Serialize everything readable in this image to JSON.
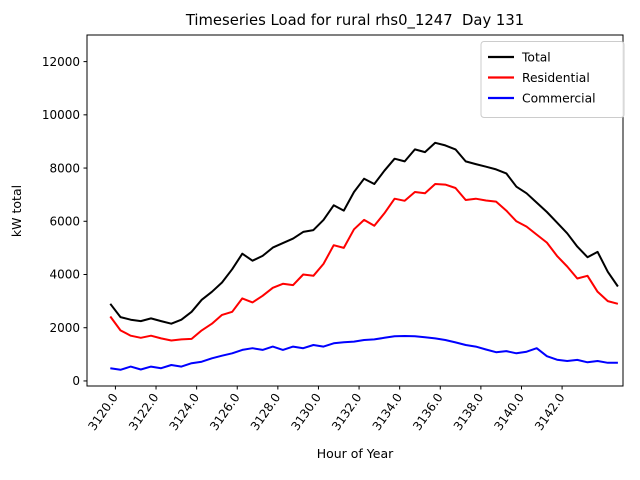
{
  "figure": {
    "title": "Timeseries Load for rural rhs0_1247  Day 131",
    "xlabel": "Hour of Year",
    "ylabel": "kW total"
  },
  "legend": {
    "entries": [
      "Total",
      "Residential",
      "Commercial"
    ],
    "position": "upper right"
  },
  "colors": {
    "total": "#000000",
    "residential": "#ff0000",
    "commercial": "#0000ff",
    "legend_border": "#cccccc",
    "background": "#ffffff"
  },
  "chart_data": {
    "type": "line",
    "title": "Timeseries Load for rural rhs0_1247  Day 131",
    "xlabel": "Hour of Year",
    "ylabel": "kW total",
    "grid": false,
    "legend_position": "upper right",
    "xlim": [
      3118.6,
      3145.0
    ],
    "ylim": [
      -190,
      13000
    ],
    "y_ticks": [
      0,
      2000,
      4000,
      6000,
      8000,
      10000,
      12000
    ],
    "x_ticks": [
      3120,
      3122,
      3124,
      3126,
      3128,
      3130,
      3132,
      3134,
      3136,
      3138,
      3140,
      3142
    ],
    "x_tick_labels": [
      "3120.0",
      "3122.0",
      "3124.0",
      "3126.0",
      "3128.0",
      "3130.0",
      "3132.0",
      "3134.0",
      "3136.0",
      "3138.0",
      "3140.0",
      "3142.0"
    ],
    "x": [
      3119.75,
      3120.25,
      3120.75,
      3121.25,
      3121.75,
      3122.25,
      3122.75,
      3123.25,
      3123.75,
      3124.25,
      3124.75,
      3125.25,
      3125.75,
      3126.25,
      3126.75,
      3127.25,
      3127.75,
      3128.25,
      3128.75,
      3129.25,
      3129.75,
      3130.25,
      3130.75,
      3131.25,
      3131.75,
      3132.25,
      3132.75,
      3133.25,
      3133.75,
      3134.25,
      3134.75,
      3135.25,
      3135.75,
      3136.25,
      3136.75,
      3137.25,
      3137.75,
      3138.25,
      3138.75,
      3139.25,
      3139.75,
      3140.25,
      3140.75,
      3141.25,
      3141.75,
      3142.25,
      3142.75,
      3143.25,
      3143.75,
      3144.25,
      3144.75
    ],
    "series": [
      {
        "name": "Total",
        "color": "#000000",
        "values": [
          2900,
          2400,
          2300,
          2250,
          2350,
          2250,
          2150,
          2300,
          2600,
          3050,
          3350,
          3700,
          4200,
          4780,
          4520,
          4700,
          5010,
          5180,
          5350,
          5600,
          5670,
          6050,
          6600,
          6400,
          7100,
          7600,
          7400,
          7900,
          8350,
          8250,
          8700,
          8600,
          8950,
          8850,
          8700,
          8250,
          8150,
          8050,
          7950,
          7800,
          7300,
          7050,
          6700,
          6350,
          5950,
          5550,
          5050,
          4650,
          4850,
          4100,
          3550
        ]
      },
      {
        "name": "Residential",
        "color": "#ff0000",
        "values": [
          2420,
          1900,
          1700,
          1620,
          1700,
          1600,
          1520,
          1560,
          1580,
          1900,
          2150,
          2480,
          2600,
          3100,
          2950,
          3200,
          3500,
          3650,
          3600,
          4000,
          3950,
          4400,
          5100,
          5000,
          5700,
          6050,
          5830,
          6300,
          6850,
          6770,
          7100,
          7050,
          7400,
          7380,
          7250,
          6800,
          6850,
          6780,
          6740,
          6400,
          6000,
          5800,
          5500,
          5200,
          4700,
          4300,
          3850,
          3950,
          3350,
          3000,
          2900
        ]
      },
      {
        "name": "Commercial",
        "color": "#0000ff",
        "values": [
          480,
          420,
          540,
          430,
          540,
          480,
          600,
          540,
          665,
          725,
          850,
          950,
          1040,
          1165,
          1230,
          1165,
          1290,
          1165,
          1290,
          1230,
          1350,
          1290,
          1415,
          1455,
          1480,
          1540,
          1560,
          1620,
          1680,
          1690,
          1680,
          1640,
          1600,
          1540,
          1450,
          1350,
          1290,
          1180,
          1080,
          1120,
          1040,
          1100,
          1230,
          930,
          800,
          750,
          790,
          700,
          750,
          680,
          680
        ]
      }
    ]
  }
}
